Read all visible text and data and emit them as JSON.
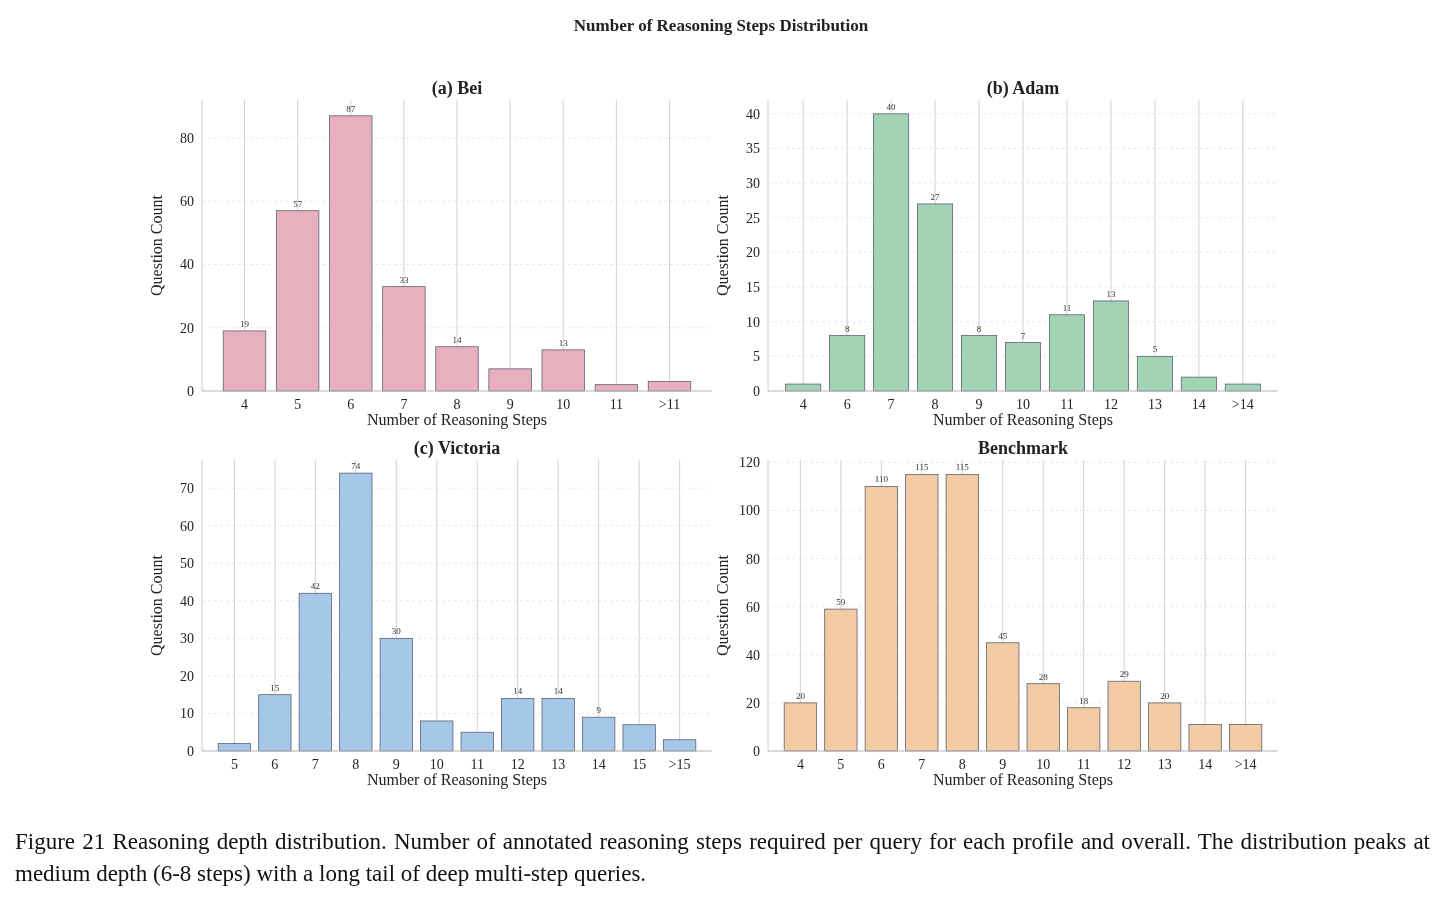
{
  "chart_data": [
    {
      "type": "bar",
      "title": "(a) Bei",
      "xlabel": "Number of Reasoning Steps",
      "ylabel": "Question Count",
      "categories": [
        "4",
        "5",
        "6",
        "7",
        "8",
        "9",
        "10",
        "11",
        ">11"
      ],
      "values": [
        19,
        57,
        87,
        33,
        14,
        7,
        13,
        2,
        3
      ],
      "value_labels": [
        "19",
        "57",
        "87",
        "33",
        "14",
        null,
        "13",
        null,
        null
      ],
      "color": "#e8afbf",
      "ylim": [
        0,
        92
      ],
      "yticks": [
        0,
        20,
        40,
        60,
        80
      ],
      "grid": true,
      "annotations": [
        "Number of Reasoning Steps Distribution"
      ]
    },
    {
      "type": "bar",
      "title": "(b) Adam",
      "xlabel": "Number of Reasoning Steps",
      "ylabel": "Question Count",
      "categories": [
        "4",
        "6",
        "7",
        "8",
        "9",
        "10",
        "11",
        "12",
        "13",
        "14",
        ">14"
      ],
      "values": [
        1,
        8,
        40,
        27,
        8,
        7,
        11,
        13,
        5,
        2,
        1
      ],
      "value_labels": [
        null,
        "8",
        "40",
        "27",
        "8",
        "7",
        "11",
        "13",
        "5",
        null,
        null
      ],
      "color": "#a3d3b5",
      "ylim": [
        0,
        42
      ],
      "yticks": [
        0,
        5,
        10,
        15,
        20,
        25,
        30,
        35,
        40
      ],
      "grid": true
    },
    {
      "type": "bar",
      "title": "(c) Victoria",
      "xlabel": "Number of Reasoning Steps",
      "ylabel": "Question Count",
      "categories": [
        "5",
        "6",
        "7",
        "8",
        "9",
        "10",
        "11",
        "12",
        "13",
        "14",
        "15",
        ">15"
      ],
      "values": [
        2,
        15,
        42,
        74,
        30,
        8,
        5,
        14,
        14,
        9,
        7,
        3
      ],
      "value_labels": [
        null,
        "15",
        "42",
        "74",
        "30",
        null,
        null,
        "14",
        "14",
        "9",
        null,
        null
      ],
      "color": "#a5c8e8",
      "ylim": [
        0,
        77.5
      ],
      "yticks": [
        0,
        10,
        20,
        30,
        40,
        50,
        60,
        70
      ],
      "grid": true
    },
    {
      "type": "bar",
      "title": "Benchmark",
      "xlabel": "Number of Reasoning Steps",
      "ylabel": "Question Count",
      "categories": [
        "4",
        "5",
        "6",
        "7",
        "8",
        "9",
        "10",
        "11",
        "12",
        "13",
        "14",
        ">14"
      ],
      "values": [
        20,
        59,
        110,
        115,
        115,
        45,
        28,
        18,
        29,
        20,
        11,
        11
      ],
      "value_labels": [
        "20",
        "59",
        "110",
        "115",
        "115",
        "45",
        "28",
        "18",
        "29",
        "20",
        null,
        null
      ],
      "color": "#f2cba3",
      "ylim": [
        0,
        121
      ],
      "yticks": [
        0,
        20,
        40,
        60,
        80,
        100,
        120
      ],
      "grid": true,
      "annotations": [
        "Figure 21 Reasoning depth distribution. Number of annotated reasoning steps required per query for each profile and overall. The distribution peaks at medium depth (6-8 steps) with a long tail of deep multi-step queries."
      ]
    }
  ]
}
